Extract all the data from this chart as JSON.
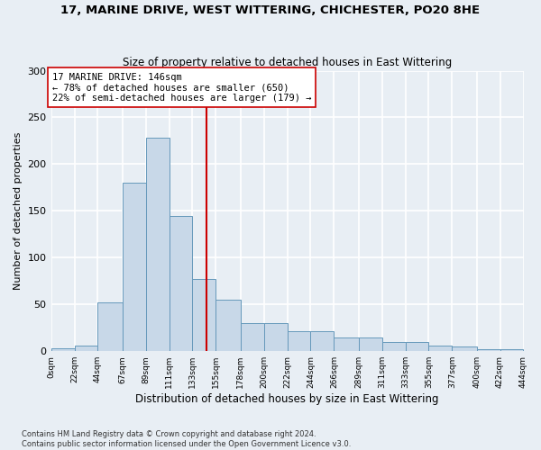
{
  "title": "17, MARINE DRIVE, WEST WITTERING, CHICHESTER, PO20 8HE",
  "subtitle": "Size of property relative to detached houses in East Wittering",
  "xlabel": "Distribution of detached houses by size in East Wittering",
  "ylabel": "Number of detached properties",
  "bar_color": "#c8d8e8",
  "bar_edge_color": "#6699bb",
  "property_size": 146,
  "annotation_line1": "17 MARINE DRIVE: 146sqm",
  "annotation_line2": "← 78% of detached houses are smaller (650)",
  "annotation_line3": "22% of semi-detached houses are larger (179) →",
  "vline_color": "#cc0000",
  "vline_x": 146,
  "footnote1": "Contains HM Land Registry data © Crown copyright and database right 2024.",
  "footnote2": "Contains public sector information licensed under the Open Government Licence v3.0.",
  "bin_edges": [
    0,
    22,
    44,
    67,
    89,
    111,
    133,
    155,
    178,
    200,
    222,
    244,
    266,
    289,
    311,
    333,
    355,
    377,
    400,
    422,
    444
  ],
  "bin_labels": [
    "0sqm",
    "22sqm",
    "44sqm",
    "67sqm",
    "89sqm",
    "111sqm",
    "133sqm",
    "155sqm",
    "178sqm",
    "200sqm",
    "222sqm",
    "244sqm",
    "266sqm",
    "289sqm",
    "311sqm",
    "333sqm",
    "355sqm",
    "377sqm",
    "400sqm",
    "422sqm",
    "444sqm"
  ],
  "bar_heights": [
    3,
    6,
    52,
    180,
    228,
    145,
    77,
    55,
    30,
    30,
    21,
    21,
    15,
    15,
    10,
    10,
    6,
    5,
    2,
    2
  ],
  "ylim": [
    0,
    300
  ],
  "yticks": [
    0,
    50,
    100,
    150,
    200,
    250,
    300
  ],
  "background_color": "#e8eef4",
  "grid_color": "#ffffff"
}
